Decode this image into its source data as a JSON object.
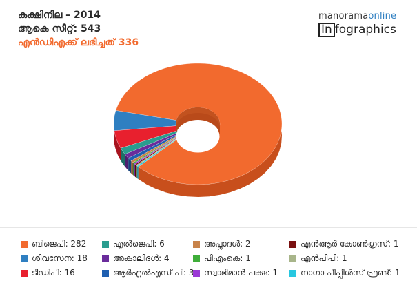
{
  "header": {
    "title": "കക്ഷിനില – 2014",
    "total_seats": "ആകെ സീറ്റ്: 543",
    "nda_seats": "എൻഡിഎക്ക് ലഭിച്ചത് 336"
  },
  "brand": {
    "top_a": "manorama",
    "top_b": "online",
    "bottom_a": "In",
    "bottom_b": "fographics"
  },
  "chart_data": {
    "type": "pie",
    "title": "കക്ഷിനില – 2014",
    "total": 336,
    "slices": [
      {
        "label": "ബിജെപി",
        "value": 282,
        "color": "#f26a2e",
        "side": "#c84f1c"
      },
      {
        "label": "ശിവസേന",
        "value": 18,
        "color": "#2f7fc1",
        "side": "#205d90"
      },
      {
        "label": "ടിഡിപി",
        "value": 16,
        "color": "#e8202e",
        "side": "#a8141f"
      },
      {
        "label": "എൽജെപി",
        "value": 6,
        "color": "#2a9d8f",
        "side": "#1d7066"
      },
      {
        "label": "അകാലിദൾ",
        "value": 4,
        "color": "#6a2c9b",
        "side": "#4b1f6f"
      },
      {
        "label": "ആർഎൽഎസ് പി",
        "value": 3,
        "color": "#1f5fb0",
        "side": "#15427b"
      },
      {
        "label": "അപ്നാദൾ",
        "value": 2,
        "color": "#c8834a",
        "side": "#8f5c33"
      },
      {
        "label": "പിഎംകെ",
        "value": 1,
        "color": "#3fae3a",
        "side": "#2b7a28"
      },
      {
        "label": "സ്വാഭിമാൻ പക്ഷ",
        "value": 1,
        "color": "#9b3ad6",
        "side": "#6d2996"
      },
      {
        "label": "എൻആർ കോൺഗ്രസ്",
        "value": 1,
        "color": "#7a1010",
        "side": "#520a0a"
      },
      {
        "label": "എൻപിപി",
        "value": 1,
        "color": "#a8b58a",
        "side": "#767f60"
      },
      {
        "label": "നാഗാ പീപ്പിൾസ് ഫ്രണ്ട്",
        "value": 1,
        "color": "#27c7e0",
        "side": "#1a8b9c"
      }
    ]
  },
  "legend": {
    "rows": [
      [
        {
          "text": "ബിജെപി: 282",
          "color": "#f26a2e"
        },
        {
          "text": "എൽജെപി: 6",
          "color": "#2a9d8f"
        },
        {
          "text": "അപ്നാദൾ: 2",
          "color": "#c8834a"
        },
        {
          "text": "എൻആർ കോൺഗ്രസ്: 1",
          "color": "#7a1010"
        }
      ],
      [
        {
          "text": "ശിവസേന: 18",
          "color": "#2f7fc1"
        },
        {
          "text": "അകാലിദൾ: 4",
          "color": "#6a2c9b"
        },
        {
          "text": "പിഎംകെ: 1",
          "color": "#3fae3a"
        },
        {
          "text": "എൻപിപി: 1",
          "color": "#a8b58a"
        }
      ],
      [
        {
          "text": "ടിഡിപി: 16",
          "color": "#e8202e"
        },
        {
          "text": "ആർഎൽഎസ് പി: 3",
          "color": "#1f5fb0"
        },
        {
          "text": "സ്വാഭിമാൻ പക്ഷ: 1",
          "color": "#9b3ad6"
        },
        {
          "text": "നാഗാ പീപ്പിൾസ് ഫ്രണ്ട്: 1",
          "color": "#27c7e0"
        }
      ]
    ]
  }
}
